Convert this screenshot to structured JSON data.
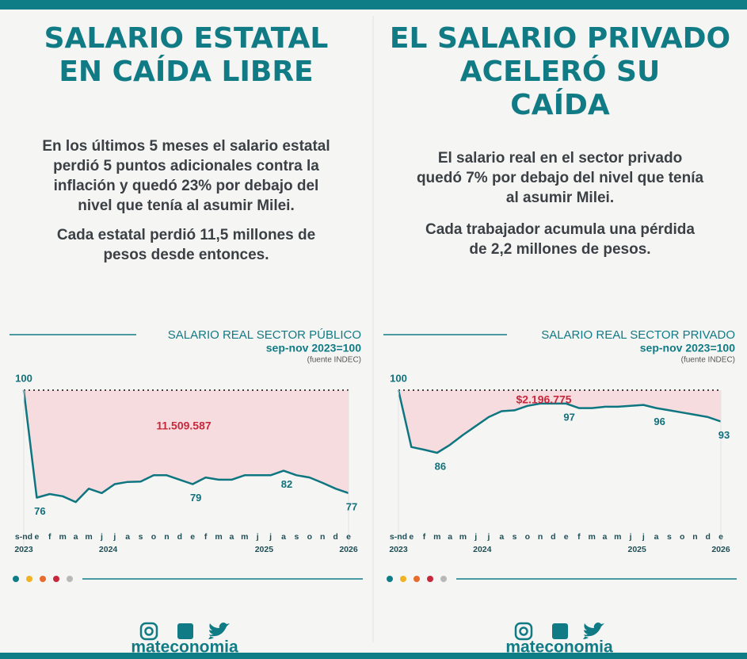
{
  "panels": [
    {
      "headline": [
        "SALARIO ESTATAL",
        "EN CAÍDA LIBRE"
      ],
      "paragraphs": [
        [
          "En los últimos 5 meses el salario estatal",
          "perdió 5 puntos adicionales contra la",
          "inflación y quedó 23% por debajo del",
          "nivel que tenía al asumir Milei."
        ],
        [
          "Cada estatal perdió 11,5 millones de",
          "pesos desde entonces."
        ]
      ]
    },
    {
      "headline": [
        "EL SALARIO PRIVADO",
        "ACELERÓ SU",
        "CAÍDA"
      ],
      "paragraphs": [
        [
          "El salario real en el sector privado",
          "quedó 7% por debajo del nivel que tenía",
          "al asumir Milei."
        ],
        [
          "Cada trabajador acumula una pérdida",
          "de 2,2 millones de pesos."
        ]
      ]
    }
  ],
  "brand": "mateconomia",
  "chart_data": [
    {
      "type": "area-line",
      "title": "SALARIO REAL SECTOR PÚBLICO",
      "subtitle": "sep-nov 2023=100",
      "source": "(fuente INDEC)",
      "categories": [
        "s-nd",
        "e",
        "f",
        "m",
        "a",
        "m",
        "j",
        "j",
        "a",
        "s",
        "o",
        "n",
        "d",
        "e",
        "f",
        "m",
        "a",
        "m",
        "j",
        "j",
        "a",
        "s",
        "o",
        "n",
        "d",
        "e"
      ],
      "years": [
        {
          "label": "2023",
          "from": 0,
          "to": 0
        },
        {
          "label": "2024",
          "from": 1,
          "to": 12
        },
        {
          "label": "2025",
          "from": 13,
          "to": 24
        },
        {
          "label": "2026",
          "from": 25,
          "to": 25
        }
      ],
      "values": [
        100,
        76,
        76.8,
        76.3,
        75,
        78,
        77,
        79,
        79.5,
        79.6,
        81,
        81,
        80,
        79,
        80.5,
        80,
        80,
        81,
        81,
        81,
        82,
        81,
        80.5,
        79.3,
        78,
        77
      ],
      "labeled_points": [
        0,
        1,
        13,
        20,
        25
      ],
      "reference_line": 100,
      "annotation": "11.509.587",
      "color": "#0e7680",
      "area_color": "#f7dcdf",
      "annotation_color": "#c8283c",
      "ylim": [
        69,
        100
      ]
    },
    {
      "type": "area-line",
      "title": "SALARIO REAL SECTOR PRIVADO",
      "subtitle": "sep-nov 2023=100",
      "source": "(fuente INDEC)",
      "categories": [
        "s-nd",
        "e",
        "f",
        "m",
        "a",
        "m",
        "j",
        "j",
        "a",
        "s",
        "o",
        "n",
        "d",
        "e",
        "f",
        "m",
        "a",
        "m",
        "j",
        "j",
        "a",
        "s",
        "o",
        "n",
        "d",
        "e"
      ],
      "years": [
        {
          "label": "2023",
          "from": 0,
          "to": 0
        },
        {
          "label": "2024",
          "from": 1,
          "to": 12
        },
        {
          "label": "2025",
          "from": 13,
          "to": 24
        },
        {
          "label": "2026",
          "from": 25,
          "to": 25
        }
      ],
      "values": [
        100,
        87.3,
        86.7,
        86,
        87.8,
        90,
        92,
        94,
        95.3,
        95.5,
        96.5,
        97,
        97,
        97,
        96,
        96,
        96.3,
        96.3,
        96.5,
        96.7,
        96,
        95.5,
        95,
        94.5,
        94,
        93
      ],
      "labeled_points": [
        0,
        3,
        13,
        20,
        25
      ],
      "reference_line": 100,
      "annotation": "$2.196.775",
      "color": "#0e7680",
      "area_color": "#f7dcdf",
      "annotation_color": "#c8283c",
      "ylim": [
        69,
        100
      ]
    }
  ]
}
